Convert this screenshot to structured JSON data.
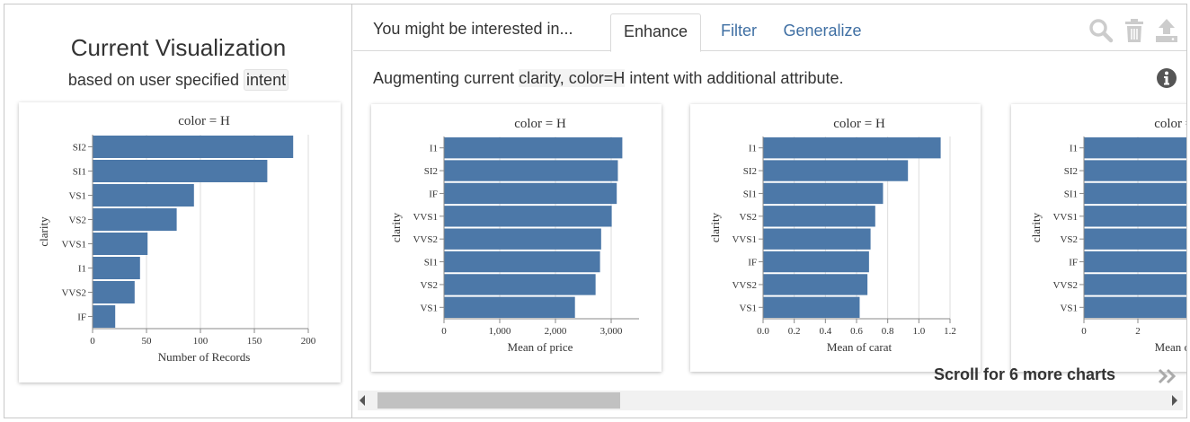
{
  "left_panel": {
    "title": "Current Visualization",
    "subtitle_prefix": "based on user specified",
    "subtitle_intent": "intent"
  },
  "right_panel": {
    "tab_prefix_label": "You might be interested in...",
    "tabs": [
      {
        "label": "Enhance",
        "active": true
      },
      {
        "label": "Filter",
        "active": false
      },
      {
        "label": "Generalize",
        "active": false
      }
    ],
    "toolbar_icons": [
      "search-icon",
      "trash-icon",
      "upload-icon"
    ],
    "description_prefix": "Augmenting current",
    "description_intent": "clarity, color=H",
    "description_suffix": "intent with additional attribute.",
    "info_icon": "info-icon",
    "scroll_hint": "Scroll for 6 more charts",
    "colors": {
      "bar": "#4c78a8",
      "tab_link": "#3f6fa3",
      "icon_gray": "#cccccc"
    }
  },
  "chart_data": [
    {
      "id": "current",
      "type": "bar",
      "orientation": "horizontal",
      "title": "color = H",
      "xlabel": "Number of Records",
      "ylabel": "clarity",
      "categories": [
        "SI2",
        "SI1",
        "VS1",
        "VS2",
        "VVS1",
        "I1",
        "VVS2",
        "IF"
      ],
      "values": [
        186,
        162,
        94,
        78,
        51,
        44,
        39,
        21
      ],
      "xlim": [
        0,
        200
      ],
      "xticks": [
        0,
        50,
        100,
        150,
        200
      ],
      "xtick_labels": [
        "0",
        "50",
        "100",
        "150",
        "200"
      ],
      "grid": true
    },
    {
      "id": "enhance-price",
      "type": "bar",
      "orientation": "horizontal",
      "title": "color = H",
      "xlabel": "Mean of price",
      "ylabel": "clarity",
      "categories": [
        "I1",
        "SI2",
        "IF",
        "VVS1",
        "VVS2",
        "SI1",
        "VS2",
        "VS1"
      ],
      "values": [
        3200,
        3120,
        3100,
        3010,
        2820,
        2800,
        2720,
        2350
      ],
      "xlim": [
        0,
        3500
      ],
      "xticks": [
        0,
        1000,
        2000,
        3000
      ],
      "xtick_labels": [
        "0",
        "1,000",
        "2,000",
        "3,000"
      ],
      "grid": true
    },
    {
      "id": "enhance-carat",
      "type": "bar",
      "orientation": "horizontal",
      "title": "color = H",
      "xlabel": "Mean of carat",
      "ylabel": "clarity",
      "categories": [
        "I1",
        "SI2",
        "SI1",
        "VS2",
        "VVS1",
        "IF",
        "VVS2",
        "VS1"
      ],
      "values": [
        1.14,
        0.93,
        0.77,
        0.72,
        0.69,
        0.68,
        0.67,
        0.62
      ],
      "xlim": [
        0,
        1.2
      ],
      "xticks": [
        0,
        0.2,
        0.4,
        0.6,
        0.8,
        1.0,
        1.2
      ],
      "xtick_labels": [
        "0.0",
        "0.2",
        "0.4",
        "0.6",
        "0.8",
        "1.0",
        "1.2"
      ],
      "grid": true
    },
    {
      "id": "enhance-partial",
      "type": "bar",
      "orientation": "horizontal",
      "title": "color = H",
      "xlabel": "Mean of ...",
      "ylabel": "clarity",
      "categories": [
        "I1",
        "SI2",
        "SI1",
        "VVS1",
        "VS2",
        "IF",
        "VVS2",
        "VS1"
      ],
      "values": [
        6,
        6,
        6,
        6,
        6,
        6,
        6,
        6
      ],
      "xlim": [
        0,
        6
      ],
      "xticks": [
        0,
        2
      ],
      "xtick_labels": [
        "0",
        "2"
      ],
      "grid": true
    }
  ]
}
